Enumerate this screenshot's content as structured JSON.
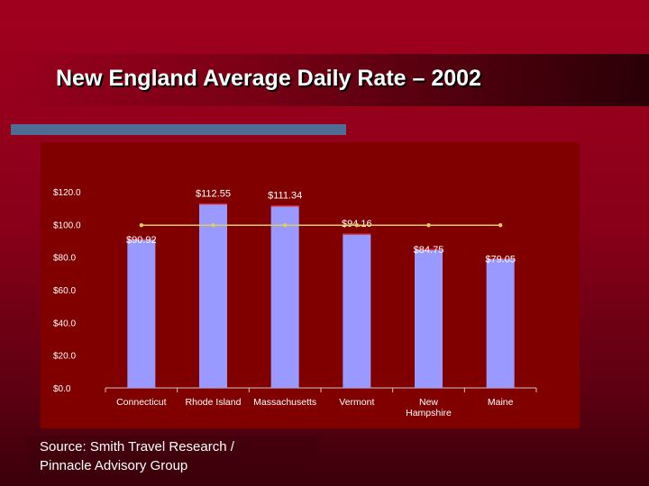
{
  "title": "New England Average Daily Rate – 2002",
  "source": "Source: Smith Travel Research /\nPinnacle Advisory Group",
  "colors": {
    "bar": "#9999ff",
    "line": "#d8d060",
    "panel": "#800000",
    "axis_text": "#ffffff",
    "accent_bar": "#4f6d94"
  },
  "chart_data": {
    "type": "bar",
    "categories": [
      "Connecticut",
      "Rhode Island",
      "Massachusetts",
      "Vermont",
      "New Hampshire",
      "Maine"
    ],
    "category_lines": [
      [
        "Connecticut"
      ],
      [
        "Rhode Island"
      ],
      [
        "Massachusetts"
      ],
      [
        "Vermont"
      ],
      [
        "New",
        "Hampshire"
      ],
      [
        "Maine"
      ]
    ],
    "values": [
      90.92,
      112.55,
      111.34,
      94.16,
      84.75,
      79.05
    ],
    "data_labels": [
      "$90.92",
      "$112.55",
      "$111.34",
      "$94.16",
      "$84.75",
      "$79.05"
    ],
    "line_series": {
      "values": [
        99.5,
        99.5,
        99.5,
        99.5,
        99.5,
        99.5
      ]
    },
    "ylim": [
      0,
      120
    ],
    "yticks": [
      0,
      20,
      40,
      60,
      80,
      100,
      120
    ],
    "ytick_labels": [
      "$0.0",
      "$20.0",
      "$40.0",
      "$60.0",
      "$80.0",
      "$100.0",
      "$120.0"
    ],
    "title": "",
    "xlabel": "",
    "ylabel": "",
    "grid": false,
    "legend": "none"
  }
}
